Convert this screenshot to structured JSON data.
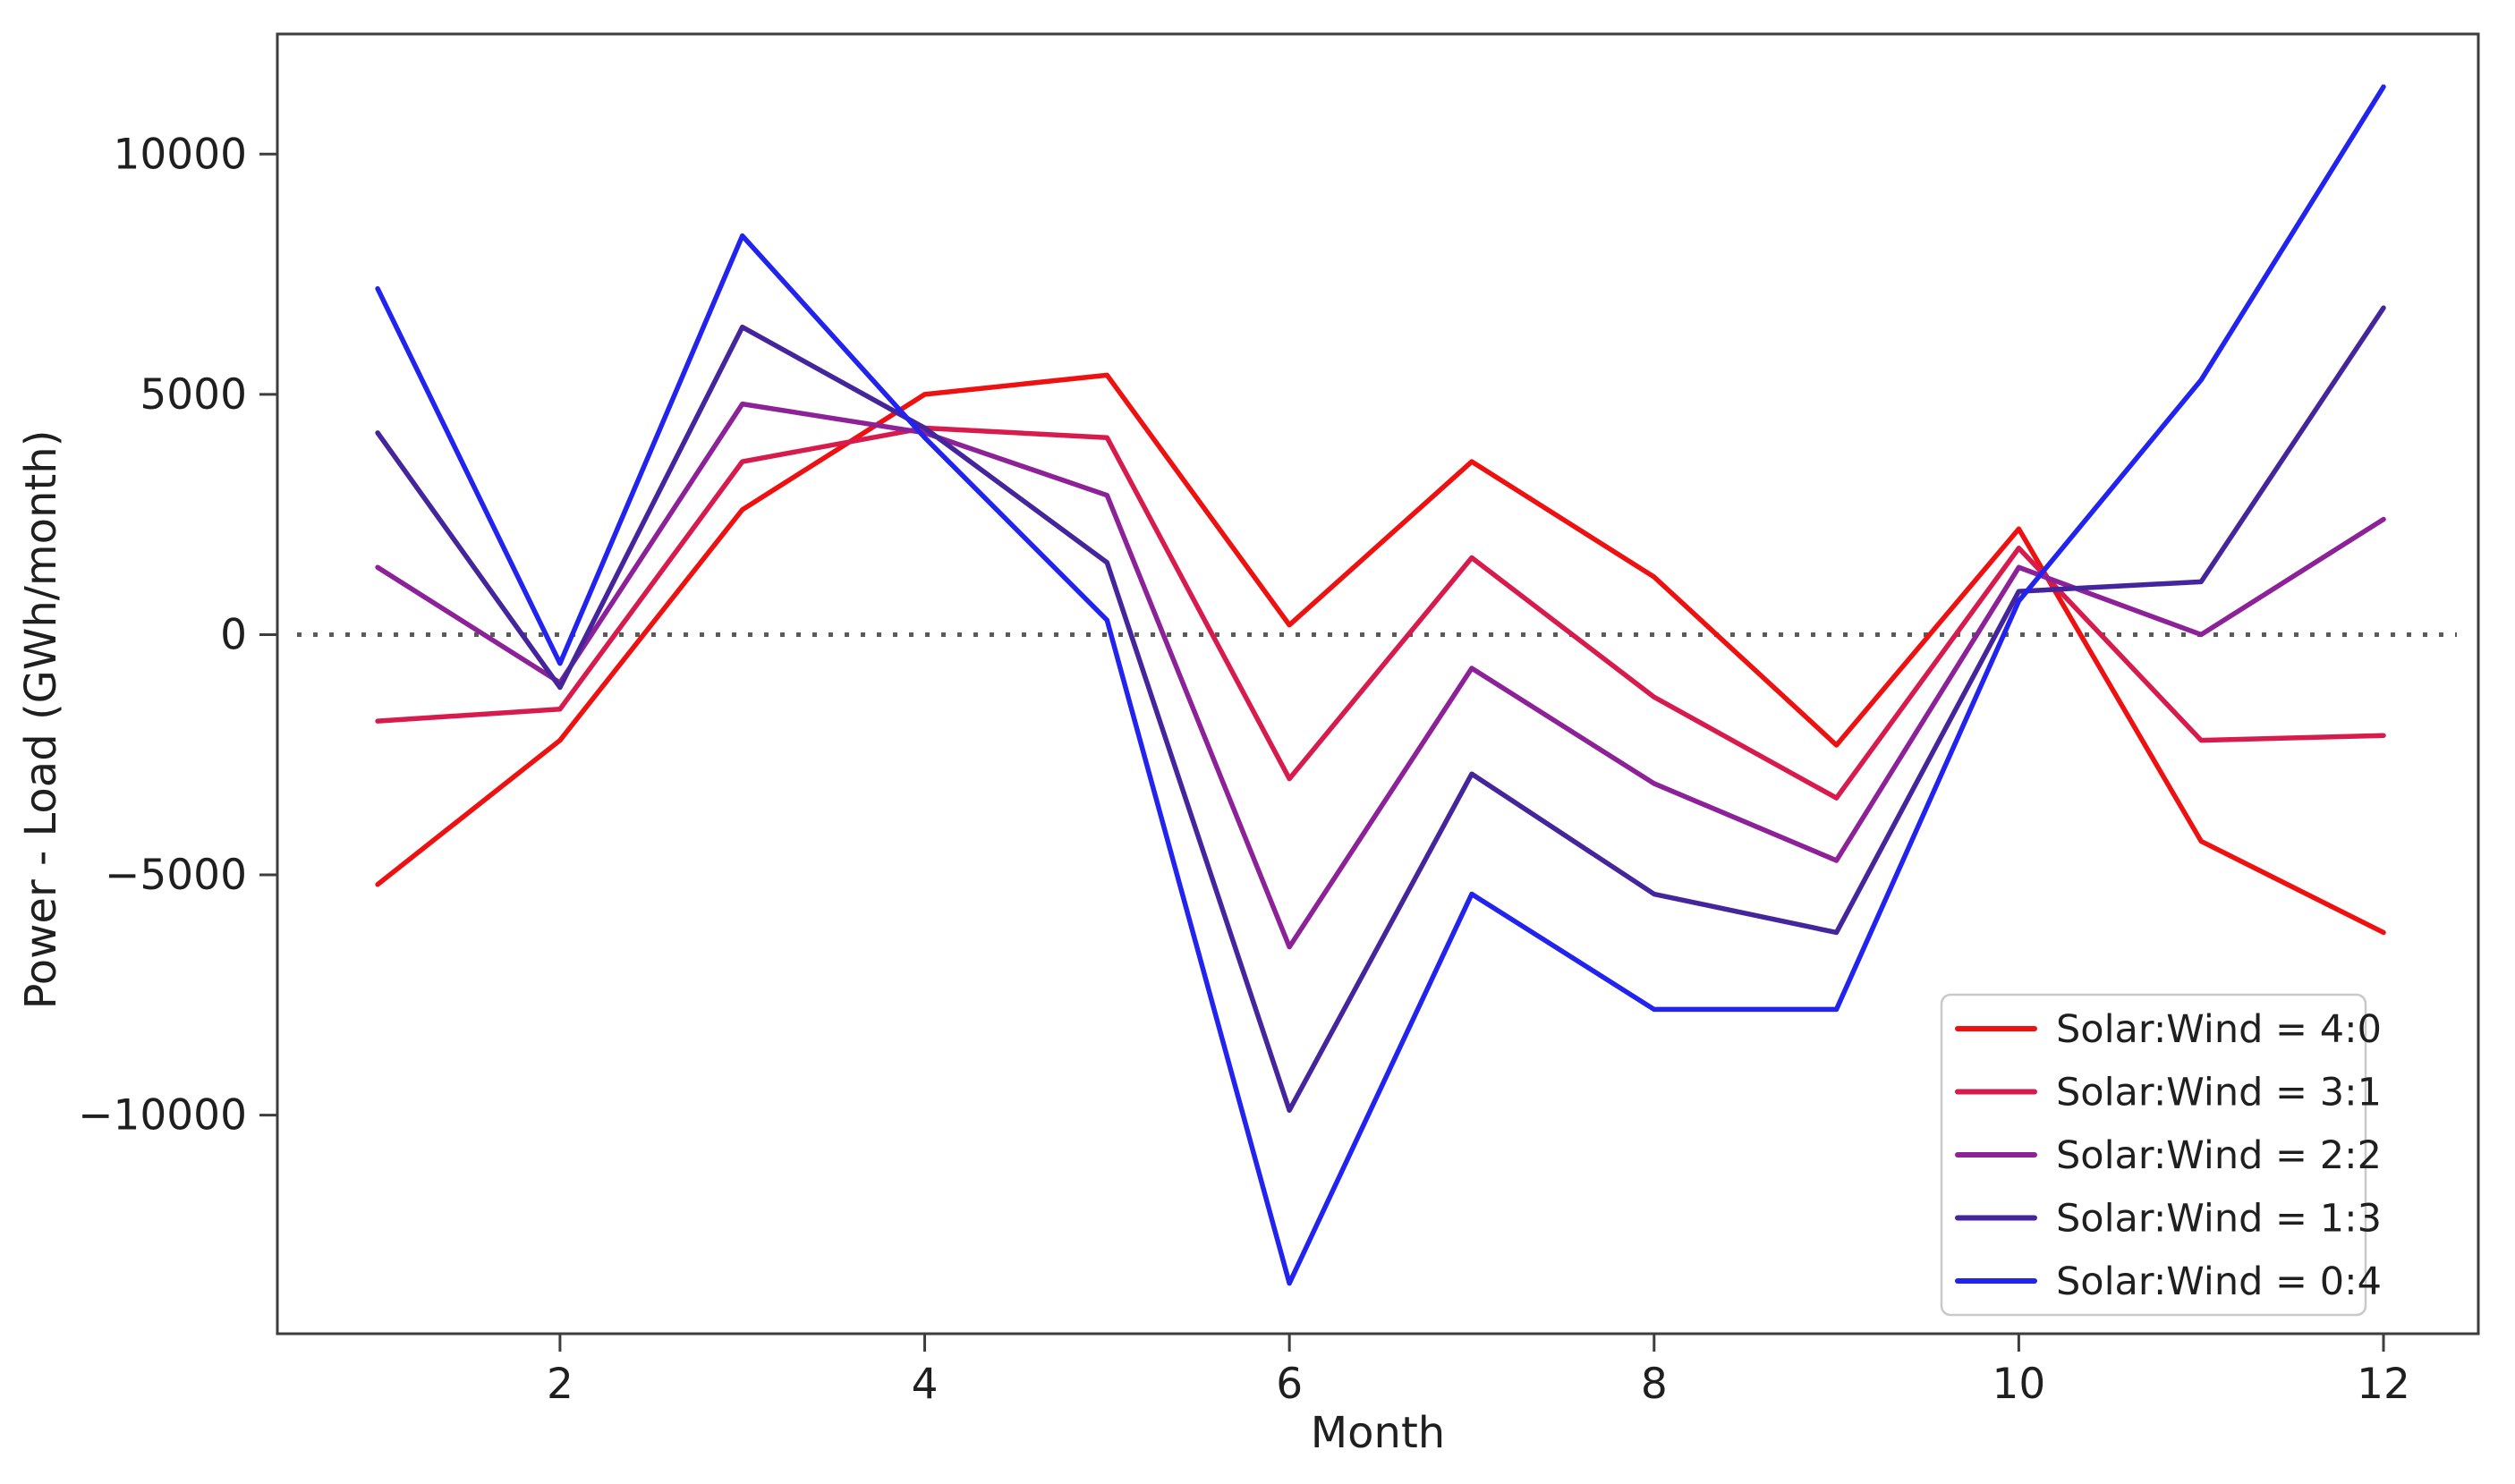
{
  "figure": {
    "background": "#ffffff",
    "frame_color": "#3d3d3d",
    "text_color": "#1f1f1f"
  },
  "chart_data": {
    "type": "line",
    "title": "",
    "xlabel": "Month",
    "ylabel": "Power - Load (GWh/month)",
    "x": [
      1,
      2,
      3,
      4,
      5,
      6,
      7,
      8,
      9,
      10,
      11,
      12
    ],
    "series": [
      {
        "name": "Solar:Wind = 4:0",
        "color": "#ee1111",
        "values": [
          -5200,
          -2200,
          2600,
          5000,
          5400,
          200,
          3600,
          1200,
          -2300,
          2200,
          -4300,
          -6200
        ]
      },
      {
        "name": "Solar:Wind = 3:1",
        "color": "#d81b4d",
        "values": [
          -1800,
          -1550,
          3600,
          4300,
          4100,
          -3000,
          1600,
          -1300,
          -3400,
          1800,
          -2200,
          -2100
        ]
      },
      {
        "name": "Solar:Wind = 2:2",
        "color": "#8c2198",
        "values": [
          1400,
          -1000,
          4800,
          4200,
          2900,
          -6500,
          -700,
          -3100,
          -4700,
          1400,
          0,
          2400
        ]
      },
      {
        "name": "Solar:Wind = 1:3",
        "color": "#45259c",
        "values": [
          4200,
          -1100,
          6400,
          4300,
          1500,
          -9900,
          -2900,
          -5400,
          -6200,
          900,
          1100,
          6800
        ]
      },
      {
        "name": "Solar:Wind = 0:4",
        "color": "#2323f0",
        "values": [
          7200,
          -600,
          8300,
          4100,
          300,
          -13500,
          -5400,
          -7800,
          -7800,
          700,
          5300,
          11400
        ]
      }
    ],
    "xlim": [
      0.45,
      12.52
    ],
    "ylim": [
      -14550,
      12500
    ],
    "yticks": [
      -10000,
      -5000,
      0,
      5000,
      10000
    ],
    "xticks": [
      2,
      4,
      6,
      8,
      10,
      12
    ],
    "zero_line": {
      "value": 0,
      "style": "dotted",
      "color": "#5a5a5a"
    },
    "legend": {
      "position": "lower right"
    },
    "grid": false
  }
}
